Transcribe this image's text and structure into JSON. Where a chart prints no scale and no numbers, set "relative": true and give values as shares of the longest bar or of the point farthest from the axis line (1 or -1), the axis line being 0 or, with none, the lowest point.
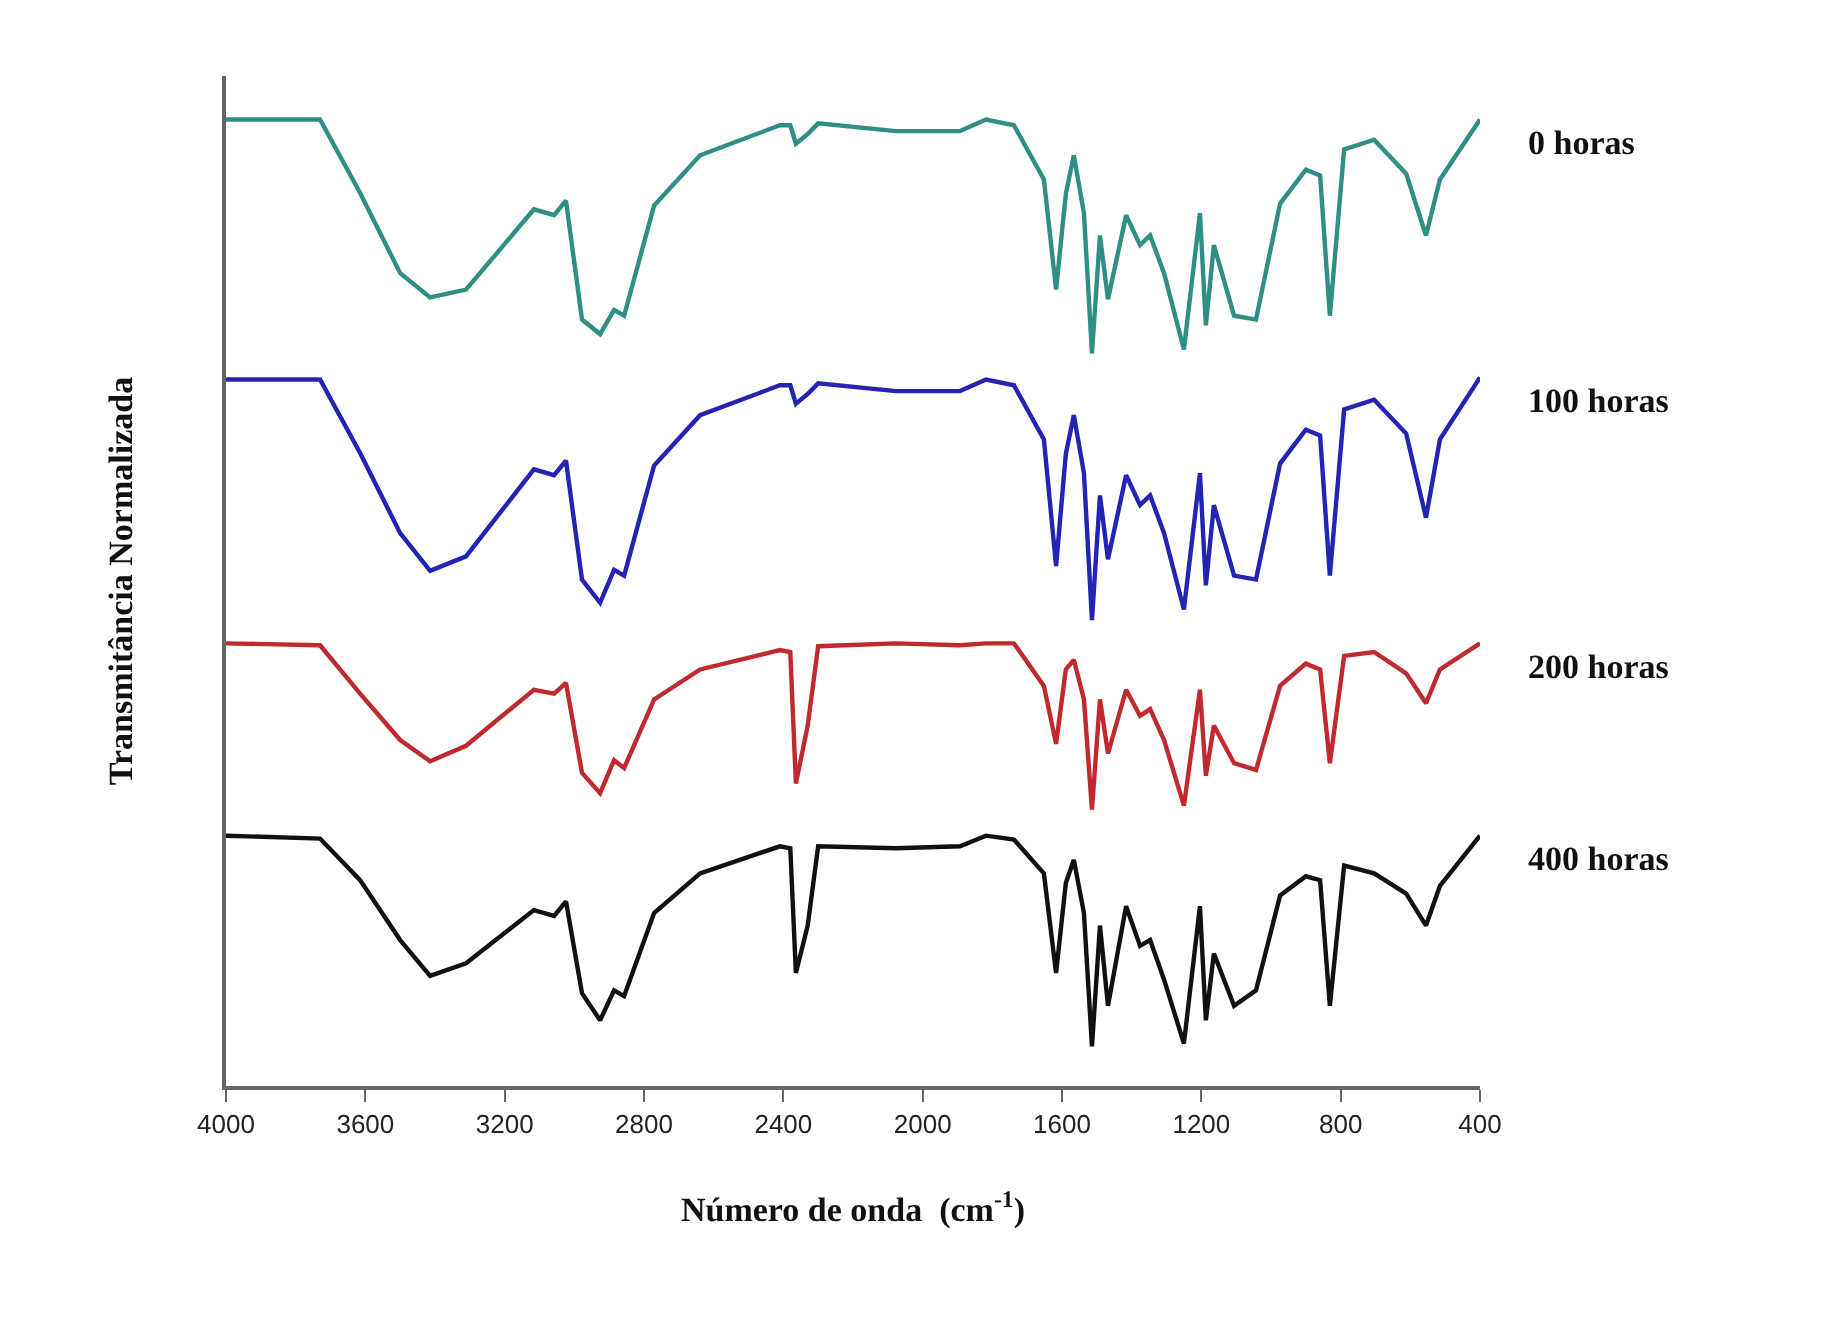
{
  "chart_data": {
    "type": "line",
    "relative": true,
    "xlabel": "Número de onda  (cm$^{-1}$)",
    "ylabel": "Transmitância Normalizada",
    "legend": false,
    "grid": false,
    "marker": "none",
    "line_style": "solid",
    "xlim": [
      4000,
      400
    ],
    "xticks": [
      4000,
      3600,
      3200,
      2800,
      2400,
      2000,
      1600,
      1200,
      800,
      400
    ],
    "x": [
      4000,
      3730,
      3615,
      3500,
      3414,
      3311,
      3116,
      3058,
      3024,
      2978,
      2926,
      2886,
      2857,
      2771,
      2639,
      2410,
      2380,
      2364,
      2330,
      2300,
      2077,
      1893,
      1818,
      1738,
      1652,
      1617,
      1589,
      1566,
      1537,
      1514,
      1491,
      1468,
      1416,
      1376,
      1347,
      1307,
      1250,
      1204,
      1187,
      1164,
      1106,
      1043,
      974,
      900,
      859,
      831,
      790,
      704,
      612,
      555,
      515,
      400
    ],
    "series": [
      {
        "name": "0 horas",
        "color": "#2f8f84",
        "values": [
          1.0,
          1.0,
          0.924,
          0.841,
          0.816,
          0.824,
          0.907,
          0.901,
          0.916,
          0.793,
          0.778,
          0.803,
          0.797,
          0.911,
          0.963,
          0.994,
          0.994,
          0.975,
          0.985,
          0.996,
          0.988,
          0.988,
          1.0,
          0.994,
          0.938,
          0.824,
          0.923,
          0.963,
          0.903,
          0.758,
          0.88,
          0.814,
          0.901,
          0.87,
          0.88,
          0.841,
          0.762,
          0.903,
          0.787,
          0.87,
          0.797,
          0.793,
          0.913,
          0.948,
          0.942,
          0.797,
          0.969,
          0.979,
          0.944,
          0.88,
          0.938,
          1.0
        ]
      },
      {
        "name": "100 horas",
        "color": "#2323b4",
        "values": [
          0.731,
          0.731,
          0.655,
          0.572,
          0.533,
          0.548,
          0.638,
          0.632,
          0.647,
          0.524,
          0.5,
          0.534,
          0.528,
          0.642,
          0.694,
          0.725,
          0.725,
          0.706,
          0.716,
          0.727,
          0.719,
          0.719,
          0.731,
          0.725,
          0.669,
          0.538,
          0.654,
          0.694,
          0.634,
          0.482,
          0.611,
          0.545,
          0.632,
          0.601,
          0.611,
          0.572,
          0.493,
          0.634,
          0.518,
          0.601,
          0.528,
          0.524,
          0.644,
          0.679,
          0.673,
          0.528,
          0.7,
          0.71,
          0.675,
          0.588,
          0.669,
          0.733
        ]
      },
      {
        "name": "200 horas",
        "color": "#c0292d",
        "values": [
          0.458,
          0.456,
          0.406,
          0.358,
          0.336,
          0.352,
          0.41,
          0.406,
          0.417,
          0.324,
          0.303,
          0.337,
          0.329,
          0.4,
          0.431,
          0.451,
          0.449,
          0.313,
          0.373,
          0.455,
          0.458,
          0.456,
          0.458,
          0.458,
          0.414,
          0.354,
          0.431,
          0.441,
          0.4,
          0.286,
          0.4,
          0.344,
          0.41,
          0.383,
          0.39,
          0.358,
          0.29,
          0.41,
          0.321,
          0.373,
          0.334,
          0.327,
          0.414,
          0.437,
          0.431,
          0.334,
          0.445,
          0.449,
          0.427,
          0.396,
          0.431,
          0.458
        ]
      },
      {
        "name": "400 horas",
        "color": "#111111",
        "values": [
          0.259,
          0.256,
          0.213,
          0.151,
          0.114,
          0.127,
          0.182,
          0.176,
          0.191,
          0.096,
          0.068,
          0.099,
          0.093,
          0.179,
          0.22,
          0.248,
          0.246,
          0.117,
          0.166,
          0.248,
          0.246,
          0.248,
          0.259,
          0.255,
          0.22,
          0.117,
          0.21,
          0.234,
          0.179,
          0.041,
          0.166,
          0.083,
          0.186,
          0.145,
          0.151,
          0.11,
          0.044,
          0.186,
          0.068,
          0.137,
          0.083,
          0.099,
          0.197,
          0.217,
          0.213,
          0.083,
          0.228,
          0.22,
          0.199,
          0.166,
          0.207,
          0.259
        ]
      }
    ]
  }
}
